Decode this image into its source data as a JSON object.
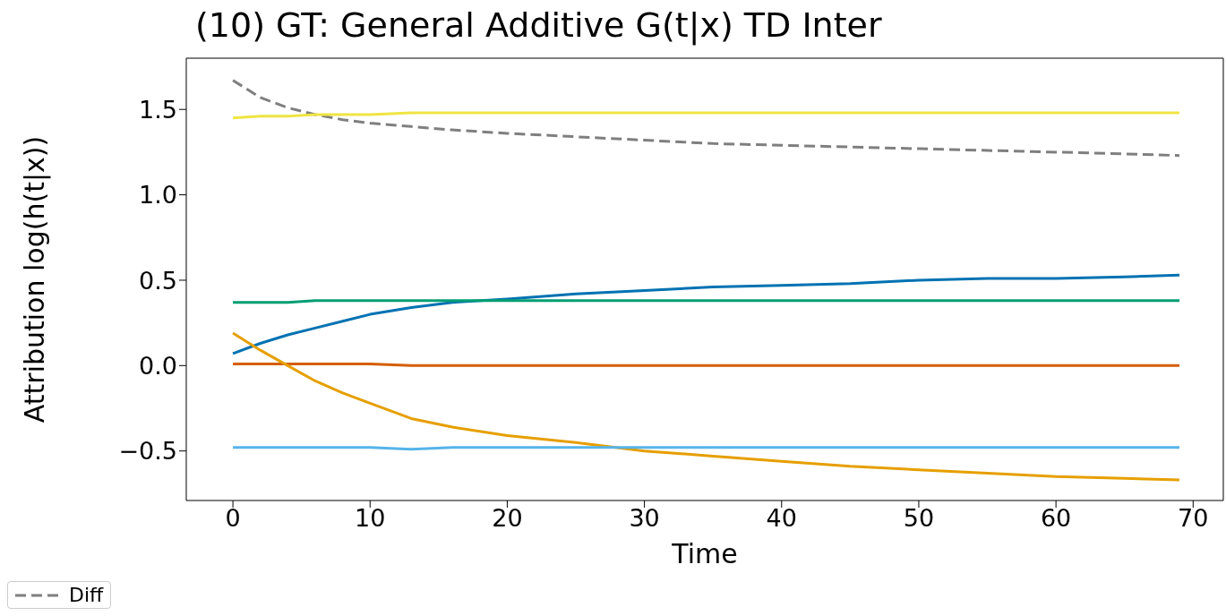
{
  "chart_data": {
    "type": "line",
    "title": "(10) GT: General Additive G(t|x) TD Inter",
    "xlabel": "Time",
    "ylabel": "Attribution log(h(t|x))",
    "x": [
      0,
      2,
      4,
      6,
      8,
      10,
      13,
      16,
      20,
      25,
      30,
      35,
      40,
      45,
      50,
      55,
      60,
      65,
      69
    ],
    "xlim": [
      -3.4,
      72.2
    ],
    "ylim": [
      -0.79,
      1.8
    ],
    "xticks": [
      0,
      10,
      20,
      30,
      40,
      50,
      60,
      70
    ],
    "yticks": [
      {
        "value": -0.5,
        "label": "−0.5"
      },
      {
        "value": 0,
        "label": "0.0"
      },
      {
        "value": 0.5,
        "label": "0.5"
      },
      {
        "value": 1,
        "label": "1.0"
      },
      {
        "value": 1.5,
        "label": "1.5"
      }
    ],
    "legend": "bottom left",
    "marker": "none",
    "series": [
      {
        "name": "Diff",
        "color": "#7f7f7f",
        "line_style": "dashed",
        "values": [
          1.67,
          1.57,
          1.51,
          1.47,
          1.44,
          1.42,
          1.4,
          1.38,
          1.36,
          1.34,
          1.32,
          1.3,
          1.29,
          1.28,
          1.27,
          1.26,
          1.25,
          1.24,
          1.23
        ]
      },
      {
        "color": "#f0e442",
        "values": [
          1.45,
          1.46,
          1.46,
          1.47,
          1.47,
          1.47,
          1.48,
          1.48,
          1.48,
          1.48,
          1.48,
          1.48,
          1.48,
          1.48,
          1.48,
          1.48,
          1.48,
          1.48,
          1.48
        ]
      },
      {
        "color": "#0072b2",
        "values": [
          0.07,
          0.13,
          0.18,
          0.22,
          0.26,
          0.3,
          0.34,
          0.37,
          0.39,
          0.42,
          0.44,
          0.46,
          0.47,
          0.48,
          0.5,
          0.51,
          0.51,
          0.52,
          0.53
        ]
      },
      {
        "color": "#009e73",
        "values": [
          0.37,
          0.37,
          0.37,
          0.38,
          0.38,
          0.38,
          0.38,
          0.38,
          0.38,
          0.38,
          0.38,
          0.38,
          0.38,
          0.38,
          0.38,
          0.38,
          0.38,
          0.38,
          0.38
        ]
      },
      {
        "color": "#d55e00",
        "values": [
          0.01,
          0.01,
          0.01,
          0.01,
          0.01,
          0.01,
          0.0,
          0.0,
          0.0,
          0.0,
          0.0,
          0.0,
          0.0,
          0.0,
          0.0,
          0.0,
          0.0,
          0.0,
          0.0
        ]
      },
      {
        "color": "#e69f00",
        "values": [
          0.19,
          0.09,
          0.0,
          -0.09,
          -0.16,
          -0.22,
          -0.31,
          -0.36,
          -0.41,
          -0.45,
          -0.5,
          -0.53,
          -0.56,
          -0.59,
          -0.61,
          -0.63,
          -0.65,
          -0.66,
          -0.67
        ]
      },
      {
        "color": "#56b4e9",
        "values": [
          -0.48,
          -0.48,
          -0.48,
          -0.48,
          -0.48,
          -0.48,
          -0.49,
          -0.48,
          -0.48,
          -0.48,
          -0.48,
          -0.48,
          -0.48,
          -0.48,
          -0.48,
          -0.48,
          -0.48,
          -0.48,
          -0.48
        ]
      }
    ]
  }
}
